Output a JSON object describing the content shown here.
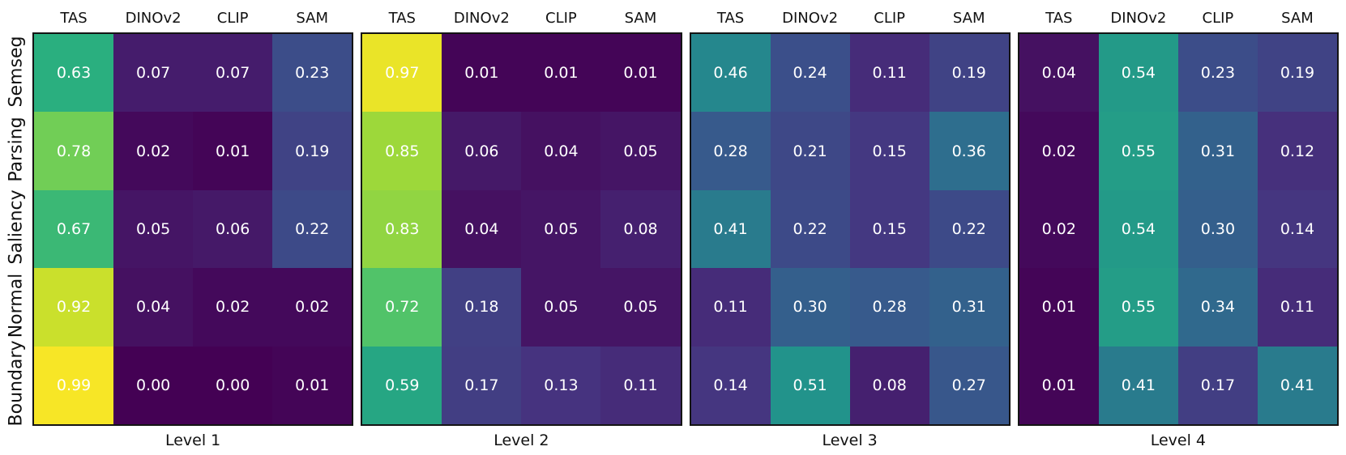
{
  "figure": {
    "type": "heatmap-grid",
    "colormap": "viridis",
    "background_color": "#ffffff",
    "border_color": "#141414",
    "annotation_text_color": "#ffffff",
    "value_format": "two-decimals",
    "row_labels": [
      "Semseg",
      "Parsing",
      "Saliency",
      "Normal",
      "Boundary"
    ],
    "column_labels": [
      "TAS",
      "DINOv2",
      "CLIP",
      "SAM"
    ]
  },
  "chart_data": [
    {
      "type": "heatmap",
      "title": "Level 1",
      "rows": [
        "Semseg",
        "Parsing",
        "Saliency",
        "Normal",
        "Boundary"
      ],
      "columns": [
        "TAS",
        "DINOv2",
        "CLIP",
        "SAM"
      ],
      "vmin": 0,
      "vmax": 1,
      "colormap": "viridis",
      "values": [
        [
          0.63,
          0.07,
          0.07,
          0.23
        ],
        [
          0.78,
          0.02,
          0.01,
          0.19
        ],
        [
          0.67,
          0.05,
          0.06,
          0.22
        ],
        [
          0.92,
          0.04,
          0.02,
          0.02
        ],
        [
          0.99,
          0.0,
          0.0,
          0.01
        ]
      ]
    },
    {
      "type": "heatmap",
      "title": "Level 2",
      "rows": [
        "Semseg",
        "Parsing",
        "Saliency",
        "Normal",
        "Boundary"
      ],
      "columns": [
        "TAS",
        "DINOv2",
        "CLIP",
        "SAM"
      ],
      "vmin": 0,
      "vmax": 1,
      "colormap": "viridis",
      "values": [
        [
          0.97,
          0.01,
          0.01,
          0.01
        ],
        [
          0.85,
          0.06,
          0.04,
          0.05
        ],
        [
          0.83,
          0.04,
          0.05,
          0.08
        ],
        [
          0.72,
          0.18,
          0.05,
          0.05
        ],
        [
          0.59,
          0.17,
          0.13,
          0.11
        ]
      ]
    },
    {
      "type": "heatmap",
      "title": "Level 3",
      "rows": [
        "Semseg",
        "Parsing",
        "Saliency",
        "Normal",
        "Boundary"
      ],
      "columns": [
        "TAS",
        "DINOv2",
        "CLIP",
        "SAM"
      ],
      "vmin": 0,
      "vmax": 1,
      "colormap": "viridis",
      "values": [
        [
          0.46,
          0.24,
          0.11,
          0.19
        ],
        [
          0.28,
          0.21,
          0.15,
          0.36
        ],
        [
          0.41,
          0.22,
          0.15,
          0.22
        ],
        [
          0.11,
          0.3,
          0.28,
          0.31
        ],
        [
          0.14,
          0.51,
          0.08,
          0.27
        ]
      ]
    },
    {
      "type": "heatmap",
      "title": "Level 4",
      "rows": [
        "Semseg",
        "Parsing",
        "Saliency",
        "Normal",
        "Boundary"
      ],
      "columns": [
        "TAS",
        "DINOv2",
        "CLIP",
        "SAM"
      ],
      "vmin": 0,
      "vmax": 1,
      "colormap": "viridis",
      "values": [
        [
          0.04,
          0.54,
          0.23,
          0.19
        ],
        [
          0.02,
          0.55,
          0.31,
          0.12
        ],
        [
          0.02,
          0.54,
          0.3,
          0.14
        ],
        [
          0.01,
          0.55,
          0.34,
          0.11
        ],
        [
          0.01,
          0.41,
          0.17,
          0.41
        ]
      ]
    }
  ]
}
